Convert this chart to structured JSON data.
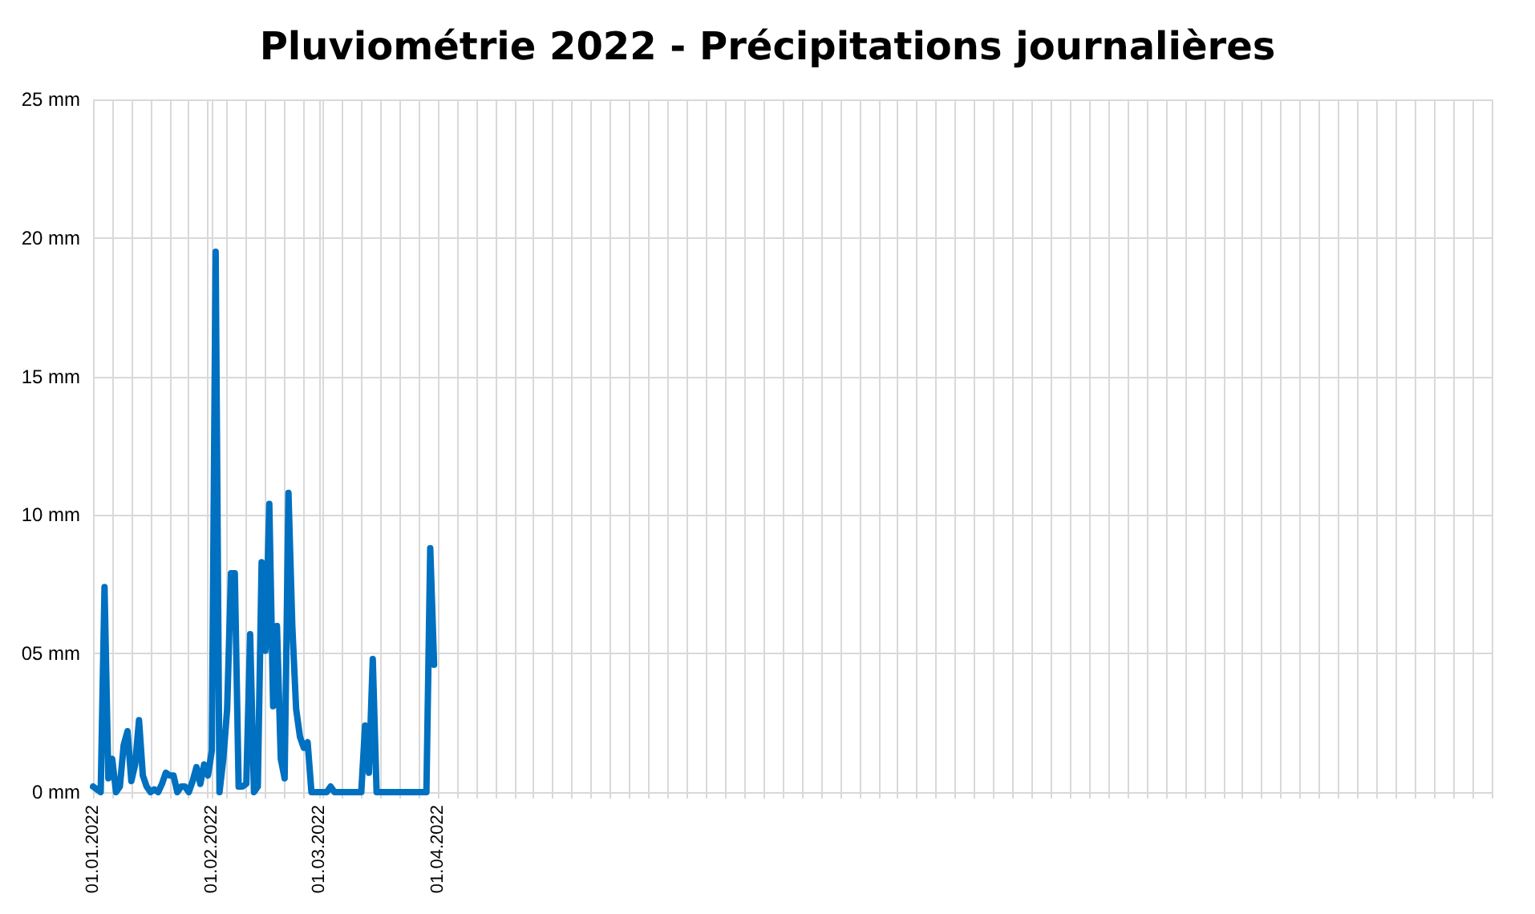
{
  "chart_data": {
    "type": "line",
    "title": "Pluviométrie 2022 - Précipitations journalières",
    "x": [
      "2022-01-01",
      "2022-01-02",
      "2022-01-03",
      "2022-01-04",
      "2022-01-05",
      "2022-01-06",
      "2022-01-07",
      "2022-01-08",
      "2022-01-09",
      "2022-01-10",
      "2022-01-11",
      "2022-01-12",
      "2022-01-13",
      "2022-01-14",
      "2022-01-15",
      "2022-01-16",
      "2022-01-17",
      "2022-01-18",
      "2022-01-19",
      "2022-01-20",
      "2022-01-21",
      "2022-01-22",
      "2022-01-23",
      "2022-01-24",
      "2022-01-25",
      "2022-01-26",
      "2022-01-27",
      "2022-01-28",
      "2022-01-29",
      "2022-01-30",
      "2022-01-31",
      "2022-02-01",
      "2022-02-02",
      "2022-02-03",
      "2022-02-04",
      "2022-02-05",
      "2022-02-06",
      "2022-02-07",
      "2022-02-08",
      "2022-02-09",
      "2022-02-10",
      "2022-02-11",
      "2022-02-12",
      "2022-02-13",
      "2022-02-14",
      "2022-02-15",
      "2022-02-16",
      "2022-02-17",
      "2022-02-18",
      "2022-02-19",
      "2022-02-20",
      "2022-02-21",
      "2022-02-22",
      "2022-02-23",
      "2022-02-24",
      "2022-02-25",
      "2022-02-26",
      "2022-02-27",
      "2022-02-28",
      "2022-03-01",
      "2022-03-02",
      "2022-03-03",
      "2022-03-04",
      "2022-03-05",
      "2022-03-06",
      "2022-03-07",
      "2022-03-08",
      "2022-03-09",
      "2022-03-10",
      "2022-03-11",
      "2022-03-12",
      "2022-03-13",
      "2022-03-14",
      "2022-03-15",
      "2022-03-16",
      "2022-03-17",
      "2022-03-18",
      "2022-03-19",
      "2022-03-20",
      "2022-03-21",
      "2022-03-22",
      "2022-03-23",
      "2022-03-24",
      "2022-03-25",
      "2022-03-26",
      "2022-03-27",
      "2022-03-28",
      "2022-03-29",
      "2022-03-30",
      "2022-03-31"
    ],
    "series": [
      {
        "color": "#0070c0",
        "values": [
          0.2,
          0.1,
          0,
          7.4,
          0.5,
          1.2,
          0,
          0.2,
          1.7,
          2.2,
          0.4,
          1.0,
          2.6,
          0.6,
          0.2,
          0,
          0.1,
          0,
          0.3,
          0.7,
          0.6,
          0.6,
          0,
          0.2,
          0.2,
          0,
          0.4,
          0.9,
          0.3,
          1.0,
          0.6,
          1.5,
          19.5,
          0,
          1.2,
          3.0,
          7.9,
          7.9,
          0.2,
          0.2,
          0.3,
          5.7,
          0,
          0.2,
          8.3,
          5.1,
          10.4,
          3.1,
          6.0,
          1.2,
          0.5,
          10.8,
          6.0,
          3.0,
          2.0,
          1.6,
          1.8,
          0,
          0,
          0,
          0,
          0,
          0.2,
          0,
          0,
          0,
          0,
          0,
          0,
          0,
          0,
          2.4,
          0.7,
          4.8,
          0,
          0,
          0,
          0,
          0,
          0,
          0,
          0,
          0,
          0,
          0,
          0,
          0,
          0,
          8.8,
          4.6
        ]
      }
    ],
    "xlim": [
      "2022-01-01",
      "2023-01-01"
    ],
    "xticks": [
      {
        "value": "2022-01-01",
        "label": "01.01.2022"
      },
      {
        "value": "2022-01-06",
        "label": null
      },
      {
        "value": "2022-01-11",
        "label": null
      },
      {
        "value": "2022-01-16",
        "label": null
      },
      {
        "value": "2022-01-21",
        "label": null
      },
      {
        "value": "2022-01-26",
        "label": null
      },
      {
        "value": "2022-01-31",
        "label": null
      },
      {
        "value": "2022-02-01",
        "label": "01.02.2022"
      },
      {
        "value": "2022-02-05",
        "label": null
      },
      {
        "value": "2022-02-10",
        "label": null
      },
      {
        "value": "2022-02-15",
        "label": null
      },
      {
        "value": "2022-02-20",
        "label": null
      },
      {
        "value": "2022-02-25",
        "label": null
      },
      {
        "value": "2022-03-01",
        "label": "01.03.2022"
      },
      {
        "value": "2022-03-02",
        "label": null
      },
      {
        "value": "2022-03-07",
        "label": null
      },
      {
        "value": "2022-03-12",
        "label": null
      },
      {
        "value": "2022-03-17",
        "label": null
      },
      {
        "value": "2022-03-22",
        "label": null
      },
      {
        "value": "2022-03-27",
        "label": null
      },
      {
        "value": "2022-04-01",
        "label": "01.04.2022"
      },
      {
        "value": "2022-04-06",
        "label": null
      },
      {
        "value": "2022-04-11",
        "label": null
      },
      {
        "value": "2022-04-16",
        "label": null
      },
      {
        "value": "2022-04-21",
        "label": null
      },
      {
        "value": "2022-04-26",
        "label": null
      },
      {
        "value": "2022-05-01",
        "label": null
      },
      {
        "value": "2022-05-06",
        "label": null
      },
      {
        "value": "2022-05-11",
        "label": null
      },
      {
        "value": "2022-05-16",
        "label": null
      },
      {
        "value": "2022-05-21",
        "label": null
      },
      {
        "value": "2022-05-26",
        "label": null
      },
      {
        "value": "2022-05-31",
        "label": null
      },
      {
        "value": "2022-06-05",
        "label": null
      },
      {
        "value": "2022-06-10",
        "label": null
      },
      {
        "value": "2022-06-15",
        "label": null
      },
      {
        "value": "2022-06-20",
        "label": null
      },
      {
        "value": "2022-06-25",
        "label": null
      },
      {
        "value": "2022-06-30",
        "label": null
      },
      {
        "value": "2022-07-05",
        "label": null
      },
      {
        "value": "2022-07-10",
        "label": null
      },
      {
        "value": "2022-07-15",
        "label": null
      },
      {
        "value": "2022-07-20",
        "label": null
      },
      {
        "value": "2022-07-25",
        "label": null
      },
      {
        "value": "2022-07-30",
        "label": null
      },
      {
        "value": "2022-08-04",
        "label": null
      },
      {
        "value": "2022-08-09",
        "label": null
      },
      {
        "value": "2022-08-14",
        "label": null
      },
      {
        "value": "2022-08-19",
        "label": null
      },
      {
        "value": "2022-08-24",
        "label": null
      },
      {
        "value": "2022-08-29",
        "label": null
      },
      {
        "value": "2022-09-03",
        "label": null
      },
      {
        "value": "2022-09-08",
        "label": null
      },
      {
        "value": "2022-09-13",
        "label": null
      },
      {
        "value": "2022-09-18",
        "label": null
      },
      {
        "value": "2022-09-23",
        "label": null
      },
      {
        "value": "2022-09-28",
        "label": null
      },
      {
        "value": "2022-10-03",
        "label": null
      },
      {
        "value": "2022-10-08",
        "label": null
      },
      {
        "value": "2022-10-13",
        "label": null
      },
      {
        "value": "2022-10-18",
        "label": null
      },
      {
        "value": "2022-10-23",
        "label": null
      },
      {
        "value": "2022-10-28",
        "label": null
      },
      {
        "value": "2022-11-02",
        "label": null
      },
      {
        "value": "2022-11-07",
        "label": null
      },
      {
        "value": "2022-11-12",
        "label": null
      },
      {
        "value": "2022-11-17",
        "label": null
      },
      {
        "value": "2022-11-22",
        "label": null
      },
      {
        "value": "2022-11-27",
        "label": null
      },
      {
        "value": "2022-12-02",
        "label": null
      },
      {
        "value": "2022-12-07",
        "label": null
      },
      {
        "value": "2022-12-12",
        "label": null
      },
      {
        "value": "2022-12-17",
        "label": null
      },
      {
        "value": "2022-12-22",
        "label": null
      },
      {
        "value": "2022-12-27",
        "label": null
      },
      {
        "value": "2023-01-01",
        "label": null
      }
    ],
    "ylim": [
      0,
      25
    ],
    "yticks": [
      {
        "value": 0,
        "label": "0 mm"
      },
      {
        "value": 5,
        "label": "05 mm"
      },
      {
        "value": 10,
        "label": "10 mm"
      },
      {
        "value": 15,
        "label": "15 mm"
      },
      {
        "value": 20,
        "label": "20 mm"
      },
      {
        "value": 25,
        "label": "25 mm"
      }
    ],
    "grid": true,
    "marker": "none",
    "line_style": "solid"
  }
}
